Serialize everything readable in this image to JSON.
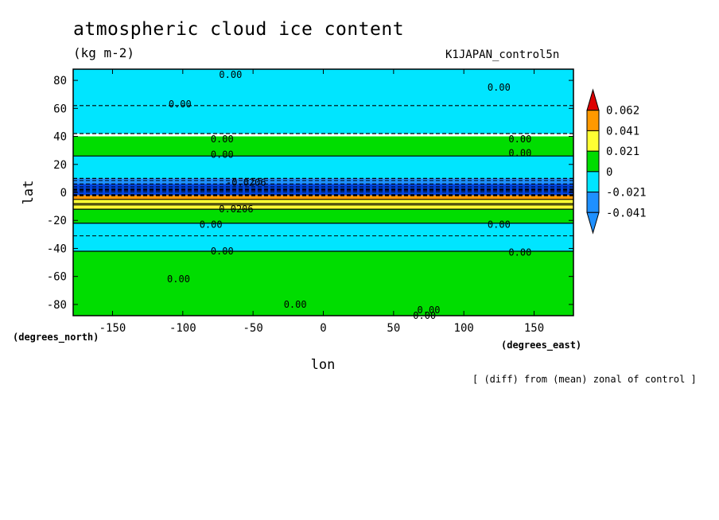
{
  "chart_data": {
    "type": "heatmap",
    "title": "atmospheric cloud ice content",
    "units": "(kg m-2)",
    "run_name": "K1JAPAN_control5n",
    "note": "[ (diff) from (mean) zonal of control ]",
    "xlabel": "lon",
    "ylabel": "lat",
    "x_unit_label": "(degrees_east)",
    "y_unit_label": "(degrees_north)",
    "xlim": [
      -178,
      178
    ],
    "ylim": [
      -88,
      88
    ],
    "x_ticks": [
      -150,
      -100,
      -50,
      0,
      50,
      100,
      150
    ],
    "y_ticks": [
      -80,
      -60,
      -40,
      -20,
      0,
      20,
      40,
      60,
      80
    ],
    "x_tick_labels": [
      "-150",
      "-100",
      "-50",
      "0",
      "50",
      "100",
      "150"
    ],
    "y_tick_labels": [
      "-80",
      "-60",
      "-40",
      "-20",
      "0",
      "20",
      "40",
      "60",
      "80"
    ],
    "colorbar": {
      "levels": [
        -0.041,
        -0.021,
        0,
        0.021,
        0.041,
        0.062
      ],
      "labels": [
        "-0.041",
        "-0.021",
        "0",
        "0.021",
        "0.041",
        "0.062"
      ],
      "colors": [
        "#1e90ff",
        "#00e5ff",
        "#00dd00",
        "#ffff33",
        "#ff9900",
        "#dd0000"
      ]
    },
    "zonal_bands": [
      {
        "lat_min": 62,
        "lat_max": 88,
        "value": -0.01
      },
      {
        "lat_min": 42,
        "lat_max": 62,
        "value": -0.01
      },
      {
        "lat_min": 26,
        "lat_max": 40,
        "value": 0.01
      },
      {
        "lat_min": 10,
        "lat_max": 26,
        "value": -0.01
      },
      {
        "lat_min": 6,
        "lat_max": 10,
        "value": -0.025
      },
      {
        "lat_min": 2,
        "lat_max": 6,
        "value": -0.045
      },
      {
        "lat_min": -2,
        "lat_max": 2,
        "value": -0.06
      },
      {
        "lat_min": -5,
        "lat_max": -2,
        "value": 0.045
      },
      {
        "lat_min": -8,
        "lat_max": -5,
        "value": 0.03
      },
      {
        "lat_min": -12,
        "lat_max": -8,
        "value": 0.025
      },
      {
        "lat_min": -22,
        "lat_max": -12,
        "value": 0.01
      },
      {
        "lat_min": -42,
        "lat_max": -22,
        "value": -0.01
      },
      {
        "lat_min": -88,
        "lat_max": -42,
        "value": 0.01
      }
    ],
    "contour_labels": [
      {
        "text": "0.00",
        "lon": -66,
        "lat": 84
      },
      {
        "text": "0.00",
        "lon": -102,
        "lat": 63
      },
      {
        "text": "0.00",
        "lon": 125,
        "lat": 75
      },
      {
        "text": "0.00",
        "lon": -72,
        "lat": 38
      },
      {
        "text": "0.00",
        "lon": -72,
        "lat": 27
      },
      {
        "text": "0.00",
        "lon": 140,
        "lat": 38
      },
      {
        "text": "0.00",
        "lon": 140,
        "lat": 28
      },
      {
        "text": "-0.0206",
        "lon": -55,
        "lat": 7
      },
      {
        "text": "0.0206",
        "lon": -62,
        "lat": -12
      },
      {
        "text": "0.00",
        "lon": -80,
        "lat": -23
      },
      {
        "text": "0.00",
        "lon": 125,
        "lat": -23
      },
      {
        "text": "0.00",
        "lon": -72,
        "lat": -42
      },
      {
        "text": "0.00",
        "lon": 140,
        "lat": -43
      },
      {
        "text": "0.00",
        "lon": -103,
        "lat": -62
      },
      {
        "text": "0.00",
        "lon": -20,
        "lat": -80
      },
      {
        "text": "0.00",
        "lon": 75,
        "lat": -84
      },
      {
        "text": "0.00",
        "lon": 72,
        "lat": -88
      }
    ]
  }
}
